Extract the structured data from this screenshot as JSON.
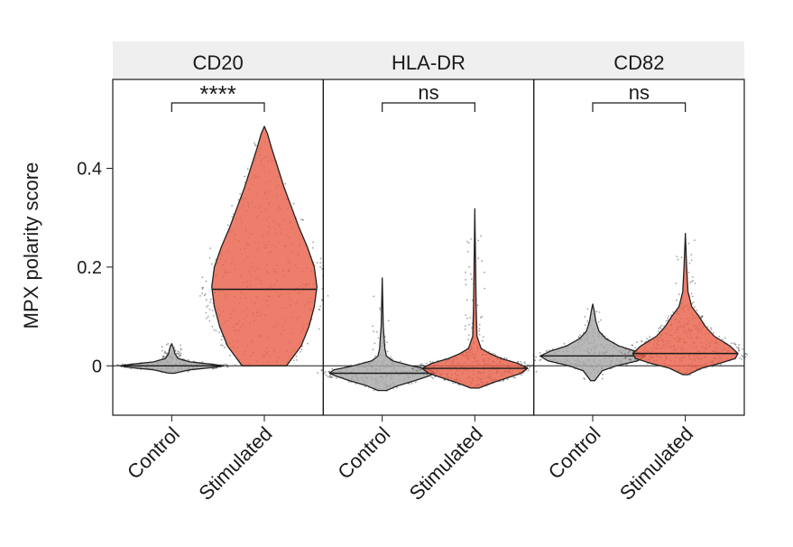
{
  "chart_data": {
    "type": "violin",
    "ylabel": "MPX polarity score",
    "ylim": [
      -0.1,
      0.58
    ],
    "yticks": [
      0,
      0.2,
      0.4
    ],
    "ytick_labels": [
      "0",
      "0.2",
      "0.4"
    ],
    "categories": [
      "Control",
      "Stimulated"
    ],
    "colors": {
      "Control": "#a8a8a8",
      "Stimulated": "#e8624a",
      "strip": "#efefef",
      "points": "#555555"
    },
    "panels": [
      {
        "title": "CD20",
        "significance": "****",
        "groups": [
          {
            "label": "Control",
            "min": -0.015,
            "max": 0.045,
            "median": 0.0,
            "max_half_width": 0.45,
            "profile": [
              [
                -0.015,
                0.05
              ],
              [
                -0.008,
                0.35
              ],
              [
                -0.003,
                0.85
              ],
              [
                0.0,
                1.0
              ],
              [
                0.003,
                0.8
              ],
              [
                0.008,
                0.35
              ],
              [
                0.015,
                0.12
              ],
              [
                0.025,
                0.06
              ],
              [
                0.035,
                0.04
              ],
              [
                0.045,
                0.0
              ]
            ]
          },
          {
            "label": "Stimulated",
            "min": 0.0,
            "max": 0.485,
            "median": 0.155,
            "max_half_width": 0.46,
            "profile": [
              [
                0.0,
                0.42
              ],
              [
                0.04,
                0.7
              ],
              [
                0.08,
                0.85
              ],
              [
                0.12,
                0.95
              ],
              [
                0.16,
                1.0
              ],
              [
                0.2,
                0.95
              ],
              [
                0.24,
                0.82
              ],
              [
                0.28,
                0.66
              ],
              [
                0.32,
                0.52
              ],
              [
                0.36,
                0.38
              ],
              [
                0.4,
                0.26
              ],
              [
                0.44,
                0.14
              ],
              [
                0.47,
                0.06
              ],
              [
                0.485,
                0.0
              ]
            ]
          }
        ]
      },
      {
        "title": "HLA-DR",
        "significance": "ns",
        "groups": [
          {
            "label": "Control",
            "min": -0.05,
            "max": 0.178,
            "median": -0.015,
            "max_half_width": 0.46,
            "profile": [
              [
                -0.05,
                0.08
              ],
              [
                -0.04,
                0.3
              ],
              [
                -0.03,
                0.62
              ],
              [
                -0.02,
                0.9
              ],
              [
                -0.015,
                1.0
              ],
              [
                -0.008,
                0.92
              ],
              [
                0.0,
                0.55
              ],
              [
                0.01,
                0.2
              ],
              [
                0.02,
                0.08
              ],
              [
                0.035,
                0.05
              ],
              [
                0.05,
                0.04
              ],
              [
                0.08,
                0.02
              ],
              [
                0.12,
                0.012
              ],
              [
                0.178,
                0.0
              ]
            ]
          },
          {
            "label": "Stimulated",
            "min": -0.045,
            "max": 0.318,
            "median": -0.005,
            "max_half_width": 0.46,
            "profile": [
              [
                -0.045,
                0.08
              ],
              [
                -0.035,
                0.32
              ],
              [
                -0.025,
                0.6
              ],
              [
                -0.015,
                0.88
              ],
              [
                -0.005,
                1.0
              ],
              [
                0.005,
                0.82
              ],
              [
                0.015,
                0.5
              ],
              [
                0.025,
                0.28
              ],
              [
                0.035,
                0.12
              ],
              [
                0.06,
                0.04
              ],
              [
                0.12,
                0.025
              ],
              [
                0.2,
                0.015
              ],
              [
                0.318,
                0.0
              ]
            ]
          }
        ]
      },
      {
        "title": "CD82",
        "significance": "ns",
        "groups": [
          {
            "label": "Control",
            "min": -0.03,
            "max": 0.125,
            "median": 0.02,
            "max_half_width": 0.46,
            "profile": [
              [
                -0.03,
                0.04
              ],
              [
                -0.01,
                0.18
              ],
              [
                0.0,
                0.45
              ],
              [
                0.01,
                0.85
              ],
              [
                0.02,
                1.0
              ],
              [
                0.03,
                0.8
              ],
              [
                0.04,
                0.5
              ],
              [
                0.055,
                0.25
              ],
              [
                0.07,
                0.12
              ],
              [
                0.09,
                0.06
              ],
              [
                0.11,
                0.03
              ],
              [
                0.125,
                0.0
              ]
            ]
          },
          {
            "label": "Stimulated",
            "min": -0.018,
            "max": 0.268,
            "median": 0.025,
            "max_half_width": 0.46,
            "profile": [
              [
                -0.018,
                0.05
              ],
              [
                -0.005,
                0.3
              ],
              [
                0.005,
                0.65
              ],
              [
                0.015,
                0.95
              ],
              [
                0.025,
                1.0
              ],
              [
                0.04,
                0.85
              ],
              [
                0.06,
                0.55
              ],
              [
                0.08,
                0.38
              ],
              [
                0.1,
                0.26
              ],
              [
                0.12,
                0.12
              ],
              [
                0.15,
                0.05
              ],
              [
                0.2,
                0.025
              ],
              [
                0.268,
                0.0
              ]
            ]
          }
        ]
      }
    ]
  }
}
